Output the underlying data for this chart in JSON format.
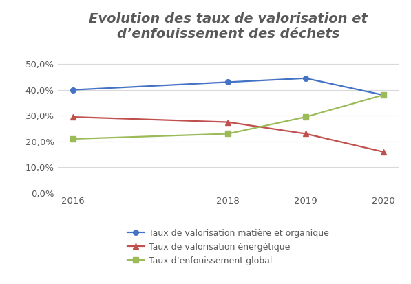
{
  "title_line1": "Evolution des taux de valorisation et",
  "title_line2": "d’enfouissement des déchets",
  "years": [
    2016,
    2018,
    2019,
    2020
  ],
  "series": [
    {
      "label": "Taux de valorisation matière et organique",
      "values": [
        0.4,
        0.43,
        0.445,
        0.38
      ],
      "color": "#4472C4",
      "marker": "o"
    },
    {
      "label": "Taux de valorisation énergétique",
      "values": [
        0.295,
        0.275,
        0.23,
        0.16
      ],
      "color": "#C0504D",
      "marker": "^"
    },
    {
      "label": "Taux d’enfouissement global",
      "values": [
        0.21,
        0.23,
        0.295,
        0.38
      ],
      "color": "#9BBB59",
      "marker": "s"
    }
  ],
  "ylim": [
    0.0,
    0.55
  ],
  "yticks": [
    0.0,
    0.1,
    0.2,
    0.3,
    0.4,
    0.5
  ],
  "background_color": "#FFFFFF",
  "plot_bg_color": "#FFFFFF",
  "grid_color": "#D9D9D9",
  "title_color": "#595959",
  "tick_color": "#595959",
  "title_fontsize": 14,
  "legend_fontsize": 9,
  "tick_fontsize": 9.5
}
